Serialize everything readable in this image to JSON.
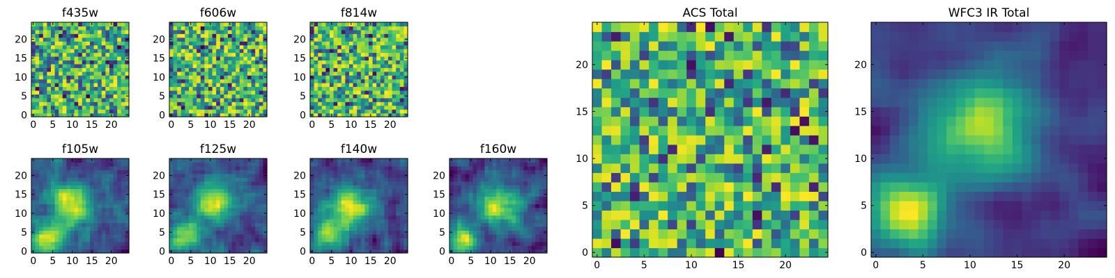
{
  "figure": {
    "panels": [
      {
        "title": "f435w",
        "seed": 11,
        "smooth": 0,
        "peaks": [],
        "xticks": [
          "0",
          "5",
          "10",
          "15",
          "20"
        ],
        "yticks": [
          "0",
          "5",
          "10",
          "15",
          "20"
        ]
      },
      {
        "title": "f606w",
        "seed": 23,
        "smooth": 0,
        "peaks": [],
        "xticks": [
          "0",
          "5",
          "10",
          "15",
          "20"
        ],
        "yticks": [
          "0",
          "5",
          "10",
          "15",
          "20"
        ]
      },
      {
        "title": "f814w",
        "seed": 37,
        "smooth": 0,
        "peaks": [],
        "xticks": [
          "0",
          "5",
          "10",
          "15",
          "20"
        ],
        "yticks": [
          "0",
          "5",
          "10",
          "15",
          "20"
        ]
      },
      {
        "title": "f105w",
        "seed": 41,
        "smooth": 1,
        "peaks": [
          [
            3,
            3,
            3
          ],
          [
            10,
            12,
            4
          ]
        ],
        "xticks": [
          "0",
          "5",
          "10",
          "15",
          "20"
        ],
        "yticks": [
          "0",
          "5",
          "10",
          "15",
          "20"
        ]
      },
      {
        "title": "f125w",
        "seed": 53,
        "smooth": 1,
        "peaks": [
          [
            3,
            4,
            3
          ],
          [
            11,
            13,
            4
          ]
        ],
        "xticks": [
          "0",
          "5",
          "10",
          "15",
          "20"
        ],
        "yticks": [
          "0",
          "5",
          "10",
          "15",
          "20"
        ]
      },
      {
        "title": "f140w",
        "seed": 67,
        "smooth": 1,
        "peaks": [
          [
            4,
            5,
            3
          ],
          [
            10,
            12,
            4
          ]
        ],
        "xticks": [
          "0",
          "5",
          "10",
          "15",
          "20"
        ],
        "yticks": [
          "0",
          "5",
          "10",
          "15",
          "20"
        ]
      },
      {
        "title": "f160w",
        "seed": 79,
        "smooth": 1,
        "peaks": [
          [
            3,
            3,
            3
          ],
          [
            12,
            12,
            4
          ]
        ],
        "xticks": [
          "0",
          "5",
          "10",
          "15",
          "20"
        ],
        "yticks": [
          "0",
          "5",
          "10",
          "15",
          "20"
        ]
      },
      {
        "title": "ACS Total",
        "seed": 97,
        "smooth": 0,
        "peaks": [],
        "xticks": [
          "0",
          "5",
          "10",
          "15",
          "20"
        ],
        "yticks": [
          "0",
          "5",
          "10",
          "15",
          "20"
        ]
      },
      {
        "title": "WFC3 IR Total",
        "seed": 131,
        "smooth": 2,
        "peaks": [
          [
            3,
            4,
            3
          ],
          [
            11,
            13,
            4
          ]
        ],
        "xticks": [
          "0",
          "5",
          "10",
          "15",
          "20"
        ],
        "yticks": [
          "0",
          "5",
          "10",
          "15",
          "20"
        ]
      }
    ]
  },
  "chart_data": {
    "type": "heatmap",
    "grid_size": [
      25,
      25
    ],
    "colormap": "viridis",
    "axis_range": [
      0,
      24
    ],
    "panels": [
      "f435w",
      "f606w",
      "f814w",
      "f105w",
      "f125w",
      "f140w",
      "f160w",
      "ACS Total",
      "WFC3 IR Total"
    ],
    "note": "Pixel intensity values not labeled; each panel is a 25x25 image cutout. Bright sources near (3,3) and (11,13) in IR bands."
  }
}
